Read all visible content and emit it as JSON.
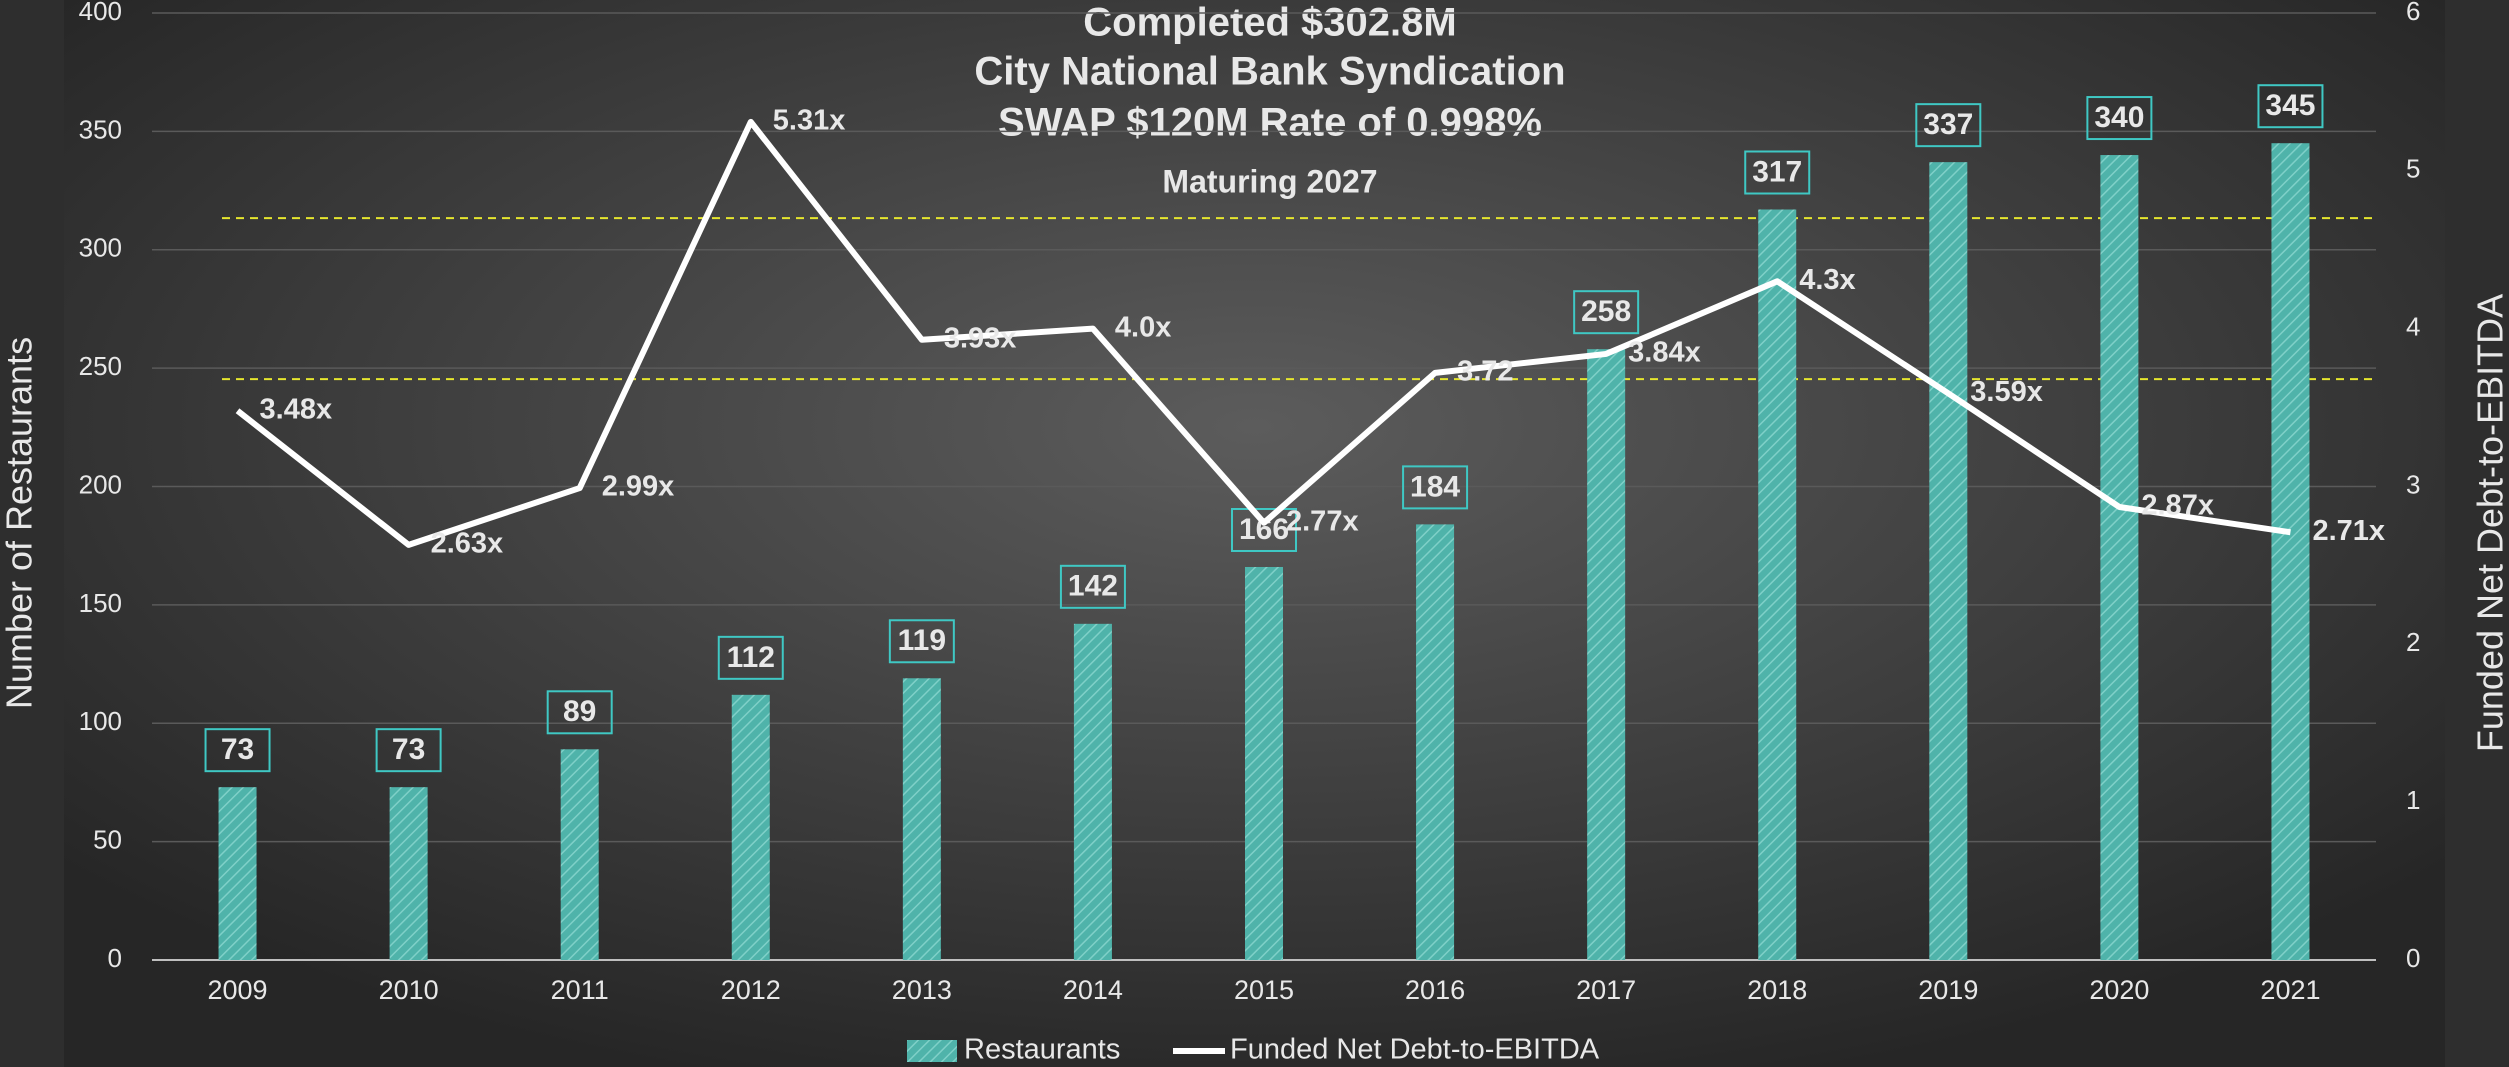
{
  "chart_data": {
    "type": "bar_line",
    "title": "Completed $302.8M",
    "subtitle": [
      "City National Bank Syndication",
      "SWAP $120M  Rate of 0.998%"
    ],
    "annotation": "Maturing 2027",
    "y_label": "Number of Restaurants",
    "y2_label": "Funded Net Debt-to-EBITDA",
    "categories": [
      "2009",
      "2010",
      "2011",
      "2012",
      "2013",
      "2014",
      "2015",
      "2016",
      "2017",
      "2018",
      "2019",
      "2020",
      "2021"
    ],
    "series": [
      {
        "name": "Restaurants",
        "type": "bar",
        "color": "#4fb3aa",
        "values": [
          73,
          73,
          89,
          112,
          119,
          142,
          166,
          184,
          258,
          317,
          337,
          340,
          345
        ]
      },
      {
        "name": "Funded Net Debt-to-EBITDA",
        "type": "line",
        "axis": "y2",
        "color": "#ffffff",
        "values": [
          3.48,
          2.63,
          2.99,
          5.31,
          3.93,
          4.0,
          2.77,
          3.72,
          3.84,
          4.3,
          3.59,
          2.87,
          2.71
        ],
        "value_labels": [
          "3.48x",
          "2.63x",
          "2.99x",
          "5.31x",
          "3.93x",
          "4.0x",
          "2.77x",
          "3.72",
          "3.84x",
          "4.3x",
          "3.59x",
          "2.87x",
          "2.71x"
        ]
      }
    ],
    "reference_lines": {
      "axis": "y2",
      "color": "#e6e62e",
      "values": [
        4.7,
        3.68
      ]
    },
    "ylim": [
      0,
      400
    ],
    "yticks": [
      0,
      50,
      100,
      150,
      200,
      250,
      300,
      350,
      400
    ],
    "y2lim": [
      0,
      6
    ],
    "y2ticks": [
      0,
      1,
      2,
      3,
      4,
      5,
      6
    ],
    "legend": "bottom"
  }
}
